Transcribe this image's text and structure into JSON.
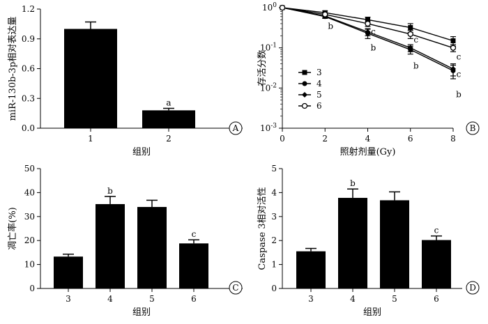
{
  "chart_data": [
    {
      "type": "bar",
      "panel": "A",
      "categories": [
        "1",
        "2"
      ],
      "values": [
        1.0,
        0.18
      ],
      "errors": [
        0.07,
        0.02
      ],
      "annotations": [
        "",
        "a"
      ],
      "xlabel": "组别",
      "ylabel": "miR-130b-3p相对表达量",
      "ylim": [
        0,
        1.2
      ],
      "yticks": [
        "0.0",
        "0.3",
        "0.6",
        "0.9",
        "1.2"
      ]
    },
    {
      "type": "line",
      "panel": "B",
      "xlabel": "照射剂量(Gy)",
      "ylabel": "存活分数",
      "xlim": [
        0,
        8
      ],
      "ylim": [
        0.001,
        1
      ],
      "yscale": "log",
      "xticks": [
        "0",
        "2",
        "4",
        "6",
        "8"
      ],
      "yticks": [
        "10^0",
        "10^-1",
        "10^-2",
        "10^-3"
      ],
      "legend_position": "left-center",
      "x": [
        0,
        2,
        4,
        6,
        8
      ],
      "series": [
        {
          "name": "3",
          "marker": "square-filled",
          "values": [
            1.0,
            0.75,
            0.5,
            0.32,
            0.15
          ],
          "errors": [
            0,
            0.08,
            0.08,
            0.08,
            0.04
          ]
        },
        {
          "name": "4",
          "marker": "circle-filled",
          "values": [
            1.0,
            0.6,
            0.23,
            0.09,
            0.027
          ],
          "errors": [
            0,
            0.06,
            0.06,
            0.02,
            0.01
          ]
        },
        {
          "name": "5",
          "marker": "diamond-filled",
          "values": [
            1.0,
            0.62,
            0.25,
            0.1,
            0.03
          ],
          "errors": [
            0,
            0.05,
            0.05,
            0.02,
            0.01
          ]
        },
        {
          "name": "6",
          "marker": "circle-open",
          "values": [
            1.0,
            0.68,
            0.4,
            0.22,
            0.1
          ],
          "errors": [
            0,
            0.06,
            0.06,
            0.05,
            0.02
          ]
        }
      ],
      "annotations": [
        {
          "x": 2,
          "value": 0.35,
          "text": "b"
        },
        {
          "x": 4,
          "value": 0.25,
          "text": "c"
        },
        {
          "x": 4,
          "value": 0.1,
          "text": "b"
        },
        {
          "x": 6,
          "value": 0.16,
          "text": "c"
        },
        {
          "x": 6,
          "value": 0.036,
          "text": "b"
        },
        {
          "x": 8,
          "value": 0.06,
          "text": "c"
        },
        {
          "x": 8,
          "value": 0.022,
          "text": "c"
        },
        {
          "x": 8,
          "value": 0.007,
          "text": "b"
        }
      ]
    },
    {
      "type": "bar",
      "panel": "C",
      "categories": [
        "3",
        "4",
        "5",
        "6"
      ],
      "values": [
        13.3,
        35.2,
        34.0,
        18.8
      ],
      "errors": [
        1.0,
        3.2,
        2.8,
        1.5
      ],
      "annotations": [
        "",
        "b",
        "",
        "c"
      ],
      "xlabel": "组别",
      "ylabel": "凋亡率(%)",
      "ylim": [
        0,
        50
      ],
      "yticks": [
        "0",
        "10",
        "20",
        "30",
        "40",
        "50"
      ]
    },
    {
      "type": "bar",
      "panel": "D",
      "categories": [
        "3",
        "4",
        "5",
        "6"
      ],
      "values": [
        1.55,
        3.78,
        3.68,
        2.02
      ],
      "errors": [
        0.12,
        0.37,
        0.35,
        0.17
      ],
      "annotations": [
        "",
        "b",
        "",
        "c"
      ],
      "xlabel": "组别",
      "ylabel": "Caspase 3相对活性",
      "ylim": [
        0,
        5
      ],
      "yticks": [
        "0",
        "1",
        "2",
        "3",
        "4",
        "5"
      ]
    }
  ]
}
